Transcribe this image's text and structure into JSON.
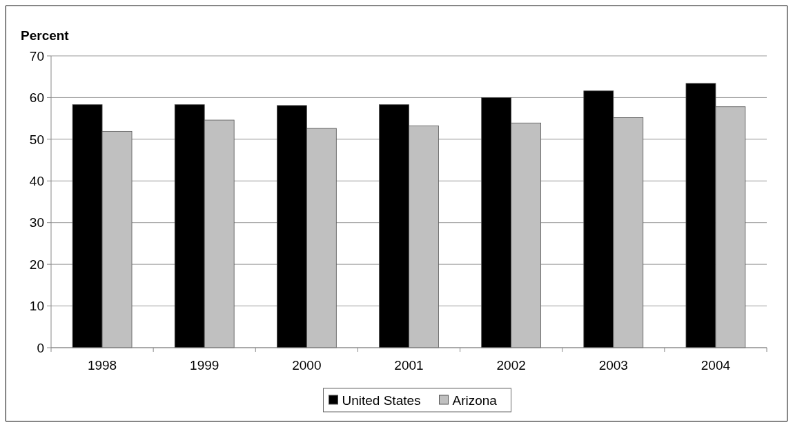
{
  "chart_data": {
    "type": "bar",
    "ylabel": "Percent",
    "categories": [
      "1998",
      "1999",
      "2000",
      "2001",
      "2002",
      "2003",
      "2004"
    ],
    "series": [
      {
        "name": "United States",
        "color": "#000000",
        "values": [
          58.3,
          58.3,
          58.1,
          58.3,
          60.0,
          61.6,
          63.4
        ]
      },
      {
        "name": "Arizona",
        "color": "#c0c0c0",
        "values": [
          51.9,
          54.6,
          52.6,
          53.2,
          53.9,
          55.2,
          57.8
        ]
      }
    ],
    "ylim": [
      0,
      70
    ],
    "yticks": [
      0,
      10,
      20,
      30,
      40,
      50,
      60,
      70
    ],
    "grid": "y",
    "legend": "bottom"
  }
}
